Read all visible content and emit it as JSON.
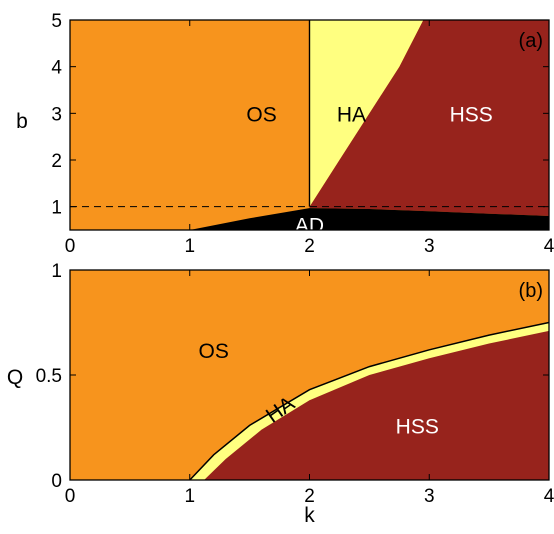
{
  "colors": {
    "os": "#f7941d",
    "ha": "#ffff80",
    "hss": "#97231c",
    "ad": "#000000"
  },
  "chart_data": [
    {
      "type": "area",
      "panel_label": "(a)",
      "xlabel": "",
      "ylabel": "b",
      "xlim": [
        0,
        4
      ],
      "ylim": [
        0.5,
        5
      ],
      "x_ticks": [
        "0",
        "1",
        "2",
        "3",
        "4"
      ],
      "y_ticks": [
        "1",
        "2",
        "3",
        "4",
        "5"
      ],
      "reference_line": {
        "y": 1,
        "style": "dashed"
      },
      "regions": [
        {
          "name": "OS",
          "color": "#f7941d",
          "label_at": [
            1.6,
            3.0
          ]
        },
        {
          "name": "HA",
          "color": "#ffff80",
          "label_at": [
            2.35,
            3.0
          ],
          "boundary_left": [
            [
              2.0,
              1.0
            ],
            [
              2.0,
              5.0
            ]
          ],
          "boundary_right": [
            [
              2.0,
              1.0
            ],
            [
              2.25,
              2.0
            ],
            [
              2.5,
              3.0
            ],
            [
              2.75,
              4.0
            ],
            [
              2.95,
              5.0
            ]
          ]
        },
        {
          "name": "HSS",
          "color": "#97231c",
          "label_at": [
            3.35,
            3.0
          ]
        },
        {
          "name": "AD",
          "color": "#000000",
          "label_at": [
            2.0,
            0.62
          ],
          "upper_boundary": [
            [
              1.0,
              0.5
            ],
            [
              1.5,
              0.75
            ],
            [
              2.0,
              0.97
            ],
            [
              2.5,
              0.95
            ],
            [
              3.0,
              0.9
            ],
            [
              3.5,
              0.85
            ],
            [
              4.0,
              0.8
            ]
          ]
        }
      ]
    },
    {
      "type": "area",
      "panel_label": "(b)",
      "xlabel": "k",
      "ylabel": "Q",
      "xlim": [
        0,
        4
      ],
      "ylim": [
        0,
        1
      ],
      "x_ticks": [
        "0",
        "1",
        "2",
        "3",
        "4"
      ],
      "y_ticks": [
        "0",
        "0.5",
        "1"
      ],
      "regions": [
        {
          "name": "OS",
          "color": "#f7941d",
          "label_at": [
            1.2,
            0.62
          ]
        },
        {
          "name": "HA",
          "color": "#ffff80",
          "label_at": [
            1.75,
            0.34
          ],
          "rotation": -35
        },
        {
          "name": "HSS",
          "color": "#97231c",
          "label_at": [
            2.9,
            0.26
          ]
        }
      ],
      "boundary_curve": [
        [
          1.0,
          0.0
        ],
        [
          1.2,
          0.12
        ],
        [
          1.5,
          0.26
        ],
        [
          2.0,
          0.43
        ],
        [
          2.5,
          0.54
        ],
        [
          3.0,
          0.62
        ],
        [
          3.5,
          0.69
        ],
        [
          4.0,
          0.75
        ]
      ],
      "hss_boundary": [
        [
          1.12,
          0.0
        ],
        [
          1.3,
          0.1
        ],
        [
          1.6,
          0.24
        ],
        [
          2.0,
          0.38
        ],
        [
          2.5,
          0.5
        ],
        [
          3.0,
          0.58
        ],
        [
          3.5,
          0.65
        ],
        [
          4.0,
          0.71
        ]
      ]
    }
  ]
}
